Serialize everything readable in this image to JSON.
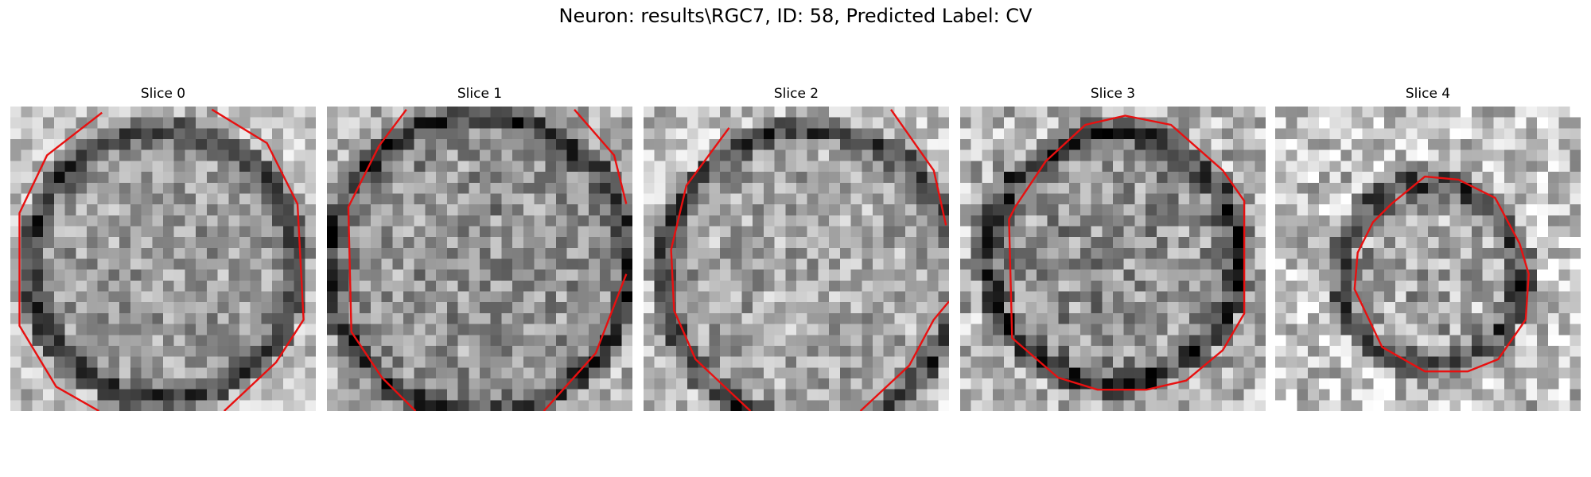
{
  "figure": {
    "title": "Neuron: results\\RGC7, ID: 58, Predicted Label: CV",
    "contour_color": "#e81010"
  },
  "slices": [
    {
      "title": "Slice 0",
      "contour_seed": 3
    },
    {
      "title": "Slice 1",
      "contour_seed": 7
    },
    {
      "title": "Slice 2",
      "contour_seed": 11
    },
    {
      "title": "Slice 3",
      "contour_seed": 19
    },
    {
      "title": "Slice 4",
      "contour_seed": 23
    }
  ]
}
